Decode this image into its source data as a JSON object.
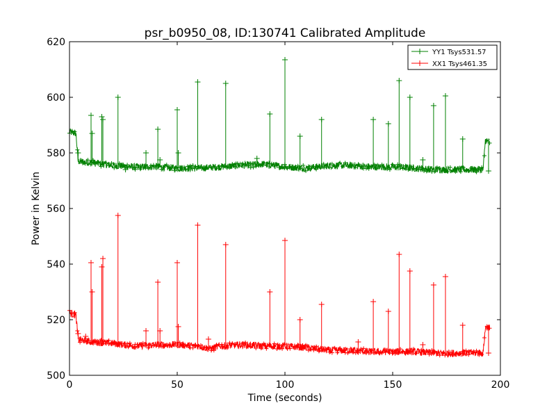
{
  "chart_data": {
    "type": "line",
    "title": "psr_b0950_08, ID:130741 Calibrated Amplitude",
    "xlabel": "Time (seconds)",
    "ylabel": "Power in Kelvin",
    "xlim": [
      0,
      200
    ],
    "ylim": [
      500,
      620
    ],
    "xticks": [
      0,
      50,
      100,
      150,
      200
    ],
    "yticks": [
      500,
      520,
      540,
      560,
      580,
      600,
      620
    ],
    "grid": false,
    "legend_position": "top-right",
    "series": [
      {
        "name": "YY1 Tsys531.57",
        "color": "#008000",
        "x_range": [
          0,
          195
        ],
        "baseline": [
          [
            0,
            587.5
          ],
          [
            3,
            587
          ],
          [
            4,
            577
          ],
          [
            10,
            576.5
          ],
          [
            20,
            575.5
          ],
          [
            30,
            575
          ],
          [
            40,
            575
          ],
          [
            50,
            574.5
          ],
          [
            60,
            574.5
          ],
          [
            70,
            575
          ],
          [
            80,
            575.5
          ],
          [
            90,
            576
          ],
          [
            100,
            575
          ],
          [
            110,
            574.5
          ],
          [
            120,
            575.5
          ],
          [
            130,
            575.5
          ],
          [
            140,
            575
          ],
          [
            150,
            575
          ],
          [
            160,
            574.5
          ],
          [
            170,
            574
          ],
          [
            180,
            574
          ],
          [
            190,
            574
          ],
          [
            192,
            574
          ],
          [
            193,
            584.5
          ],
          [
            195,
            584
          ]
        ],
        "spikes": [
          [
            4,
            580
          ],
          [
            10,
            593.5
          ],
          [
            10.5,
            587
          ],
          [
            15,
            593
          ],
          [
            15.5,
            592
          ],
          [
            22.5,
            600
          ],
          [
            26,
            574
          ],
          [
            35.5,
            580
          ],
          [
            41,
            588.5
          ],
          [
            42,
            577.5
          ],
          [
            50,
            595.5
          ],
          [
            50.5,
            580
          ],
          [
            59.5,
            605.5
          ],
          [
            72.5,
            605
          ],
          [
            87,
            578
          ],
          [
            93,
            594
          ],
          [
            100,
            613.5
          ],
          [
            107,
            586
          ],
          [
            117,
            592
          ],
          [
            141,
            592
          ],
          [
            148,
            590.5
          ],
          [
            153,
            606
          ],
          [
            158,
            600
          ],
          [
            164,
            577.5
          ],
          [
            169,
            597
          ],
          [
            174.5,
            600.5
          ],
          [
            182.5,
            585
          ],
          [
            194.5,
            573.5
          ]
        ]
      },
      {
        "name": "XX1 Tsys461.35",
        "color": "#ff0000",
        "x_range": [
          0,
          195
        ],
        "baseline": [
          [
            0,
            522.5
          ],
          [
            3,
            521.5
          ],
          [
            4,
            513
          ],
          [
            10,
            512
          ],
          [
            20,
            511.5
          ],
          [
            30,
            510.5
          ],
          [
            40,
            511
          ],
          [
            50,
            511
          ],
          [
            60,
            510.5
          ],
          [
            65,
            509.5
          ],
          [
            70,
            510.5
          ],
          [
            80,
            511
          ],
          [
            90,
            510.5
          ],
          [
            100,
            510.5
          ],
          [
            110,
            510
          ],
          [
            120,
            509
          ],
          [
            130,
            509
          ],
          [
            140,
            508.5
          ],
          [
            150,
            508.5
          ],
          [
            160,
            508.5
          ],
          [
            170,
            508
          ],
          [
            180,
            508
          ],
          [
            190,
            508
          ],
          [
            192,
            508
          ],
          [
            193,
            517
          ],
          [
            195,
            517.5
          ]
        ],
        "spikes": [
          [
            4,
            515
          ],
          [
            7.5,
            514
          ],
          [
            10,
            540.5
          ],
          [
            10.5,
            530
          ],
          [
            15,
            539
          ],
          [
            15.5,
            542
          ],
          [
            22.5,
            557.5
          ],
          [
            35.5,
            516
          ],
          [
            41,
            533.5
          ],
          [
            42,
            516
          ],
          [
            50,
            540.5
          ],
          [
            50.5,
            517.5
          ],
          [
            59.5,
            554
          ],
          [
            64.5,
            513
          ],
          [
            72.5,
            547
          ],
          [
            93,
            530
          ],
          [
            100,
            548.5
          ],
          [
            107,
            520
          ],
          [
            117,
            525.5
          ],
          [
            134,
            512
          ],
          [
            141,
            526.5
          ],
          [
            148,
            523
          ],
          [
            153,
            543.5
          ],
          [
            158,
            537.5
          ],
          [
            164,
            511
          ],
          [
            169,
            532.5
          ],
          [
            174.5,
            535.5
          ],
          [
            182.5,
            518
          ],
          [
            194.5,
            508
          ]
        ]
      }
    ]
  }
}
